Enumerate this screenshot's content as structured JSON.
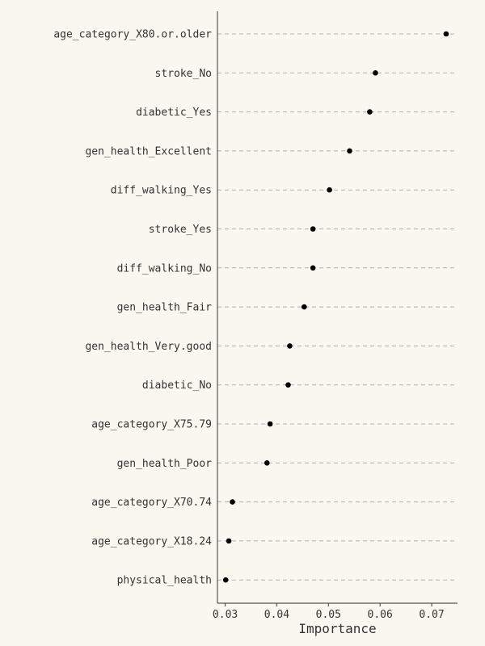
{
  "chart_data": {
    "type": "scatter",
    "xlabel": "Importance",
    "ylabel": "",
    "xlim": [
      0.0285,
      0.075
    ],
    "xticks": [
      0.03,
      0.04,
      0.05,
      0.06,
      0.07
    ],
    "xtick_labels": [
      "0.03",
      "0.04",
      "0.05",
      "0.06",
      "0.07"
    ],
    "grid": "horizontal dashed guide per category",
    "legend": "none",
    "categories": [
      "age_category_X80.or.older",
      "stroke_No",
      "diabetic_Yes",
      "gen_health_Excellent",
      "diff_walking_Yes",
      "stroke_Yes",
      "diff_walking_No",
      "gen_health_Fair",
      "gen_health_Very.good",
      "diabetic_No",
      "age_category_X75.79",
      "gen_health_Poor",
      "age_category_X70.74",
      "age_category_X18.24",
      "physical_health"
    ],
    "values": [
      0.0728,
      0.0591,
      0.058,
      0.0541,
      0.0502,
      0.047,
      0.047,
      0.0453,
      0.0425,
      0.0422,
      0.0387,
      0.0381,
      0.0314,
      0.0307,
      0.0301
    ],
    "colors": {
      "background": "#faf7f0",
      "point": "#000000",
      "guide": "#b0b0b0",
      "axis": "#555555",
      "text": "#333333"
    }
  }
}
